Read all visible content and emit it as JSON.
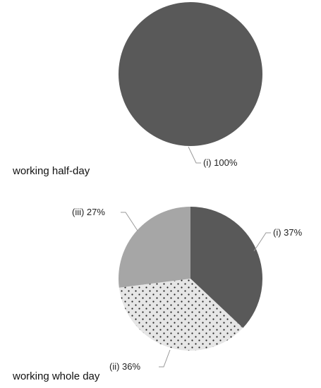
{
  "chart_data": [
    {
      "type": "pie",
      "title": "working half-day",
      "categories": [
        "(i)"
      ],
      "values": [
        100
      ],
      "value_labels": [
        "(i) 100%"
      ],
      "colors": [
        "#595959"
      ],
      "patterns": [
        "solid"
      ]
    },
    {
      "type": "pie",
      "title": "working whole day",
      "categories": [
        "(i)",
        "(ii)",
        "(iii)"
      ],
      "values": [
        37,
        36,
        27
      ],
      "value_labels": [
        "(i) 37%",
        "(ii) 36%",
        "(iii) 27%"
      ],
      "colors": [
        "#595959",
        "#e6e6e6",
        "#a6a6a6"
      ],
      "patterns": [
        "solid",
        "dots",
        "solid"
      ]
    }
  ]
}
